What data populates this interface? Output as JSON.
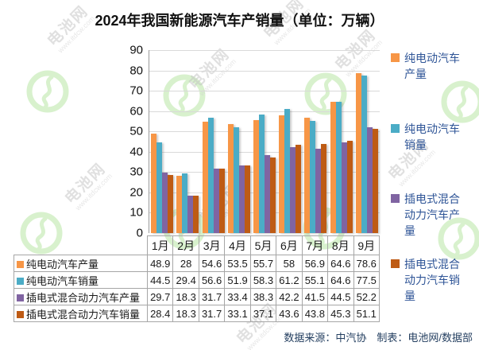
{
  "title": "2024年我国新能源汽车产销量（单位：万辆）",
  "footer": {
    "source": "数据来源：中汽协　制表：电池网/数据部"
  },
  "watermark": {
    "brand": "电池网",
    "url": "www.itdcw.com",
    "logo_color": "#b9e6a6"
  },
  "chart_data": {
    "type": "bar",
    "title": "2024年我国新能源汽车产销量（单位：万辆）",
    "categories": [
      "1月",
      "2月",
      "3月",
      "4月",
      "5月",
      "6月",
      "7月",
      "8月",
      "9月"
    ],
    "series": [
      {
        "name": "纯电动汽车产量",
        "color": "#F79646",
        "values": [
          48.9,
          28,
          54.6,
          53.5,
          55.7,
          58,
          56.9,
          64.6,
          78.6
        ]
      },
      {
        "name": "纯电动汽车销量",
        "color": "#4BACC6",
        "values": [
          44.5,
          29.4,
          56.6,
          51.9,
          58.3,
          61.2,
          55.1,
          64.6,
          77.5
        ]
      },
      {
        "name": "插电式混合动力汽车产量",
        "color": "#8064A2",
        "values": [
          29.7,
          18.3,
          31.7,
          33.4,
          38.3,
          42.2,
          41.5,
          44.5,
          52.2
        ]
      },
      {
        "name": "插电式混合动力汽车销量",
        "color": "#BE5B14",
        "values": [
          28.4,
          18.3,
          31.7,
          33.1,
          37.1,
          43.6,
          43.8,
          45.3,
          51.1
        ]
      }
    ],
    "xlabel": "",
    "ylabel": "",
    "ylim": [
      0,
      90
    ],
    "yticks": [
      0,
      10,
      20,
      30,
      40,
      50,
      60,
      70,
      80,
      90
    ],
    "grid": true,
    "legend_position": "right",
    "data_table_shown": true
  }
}
